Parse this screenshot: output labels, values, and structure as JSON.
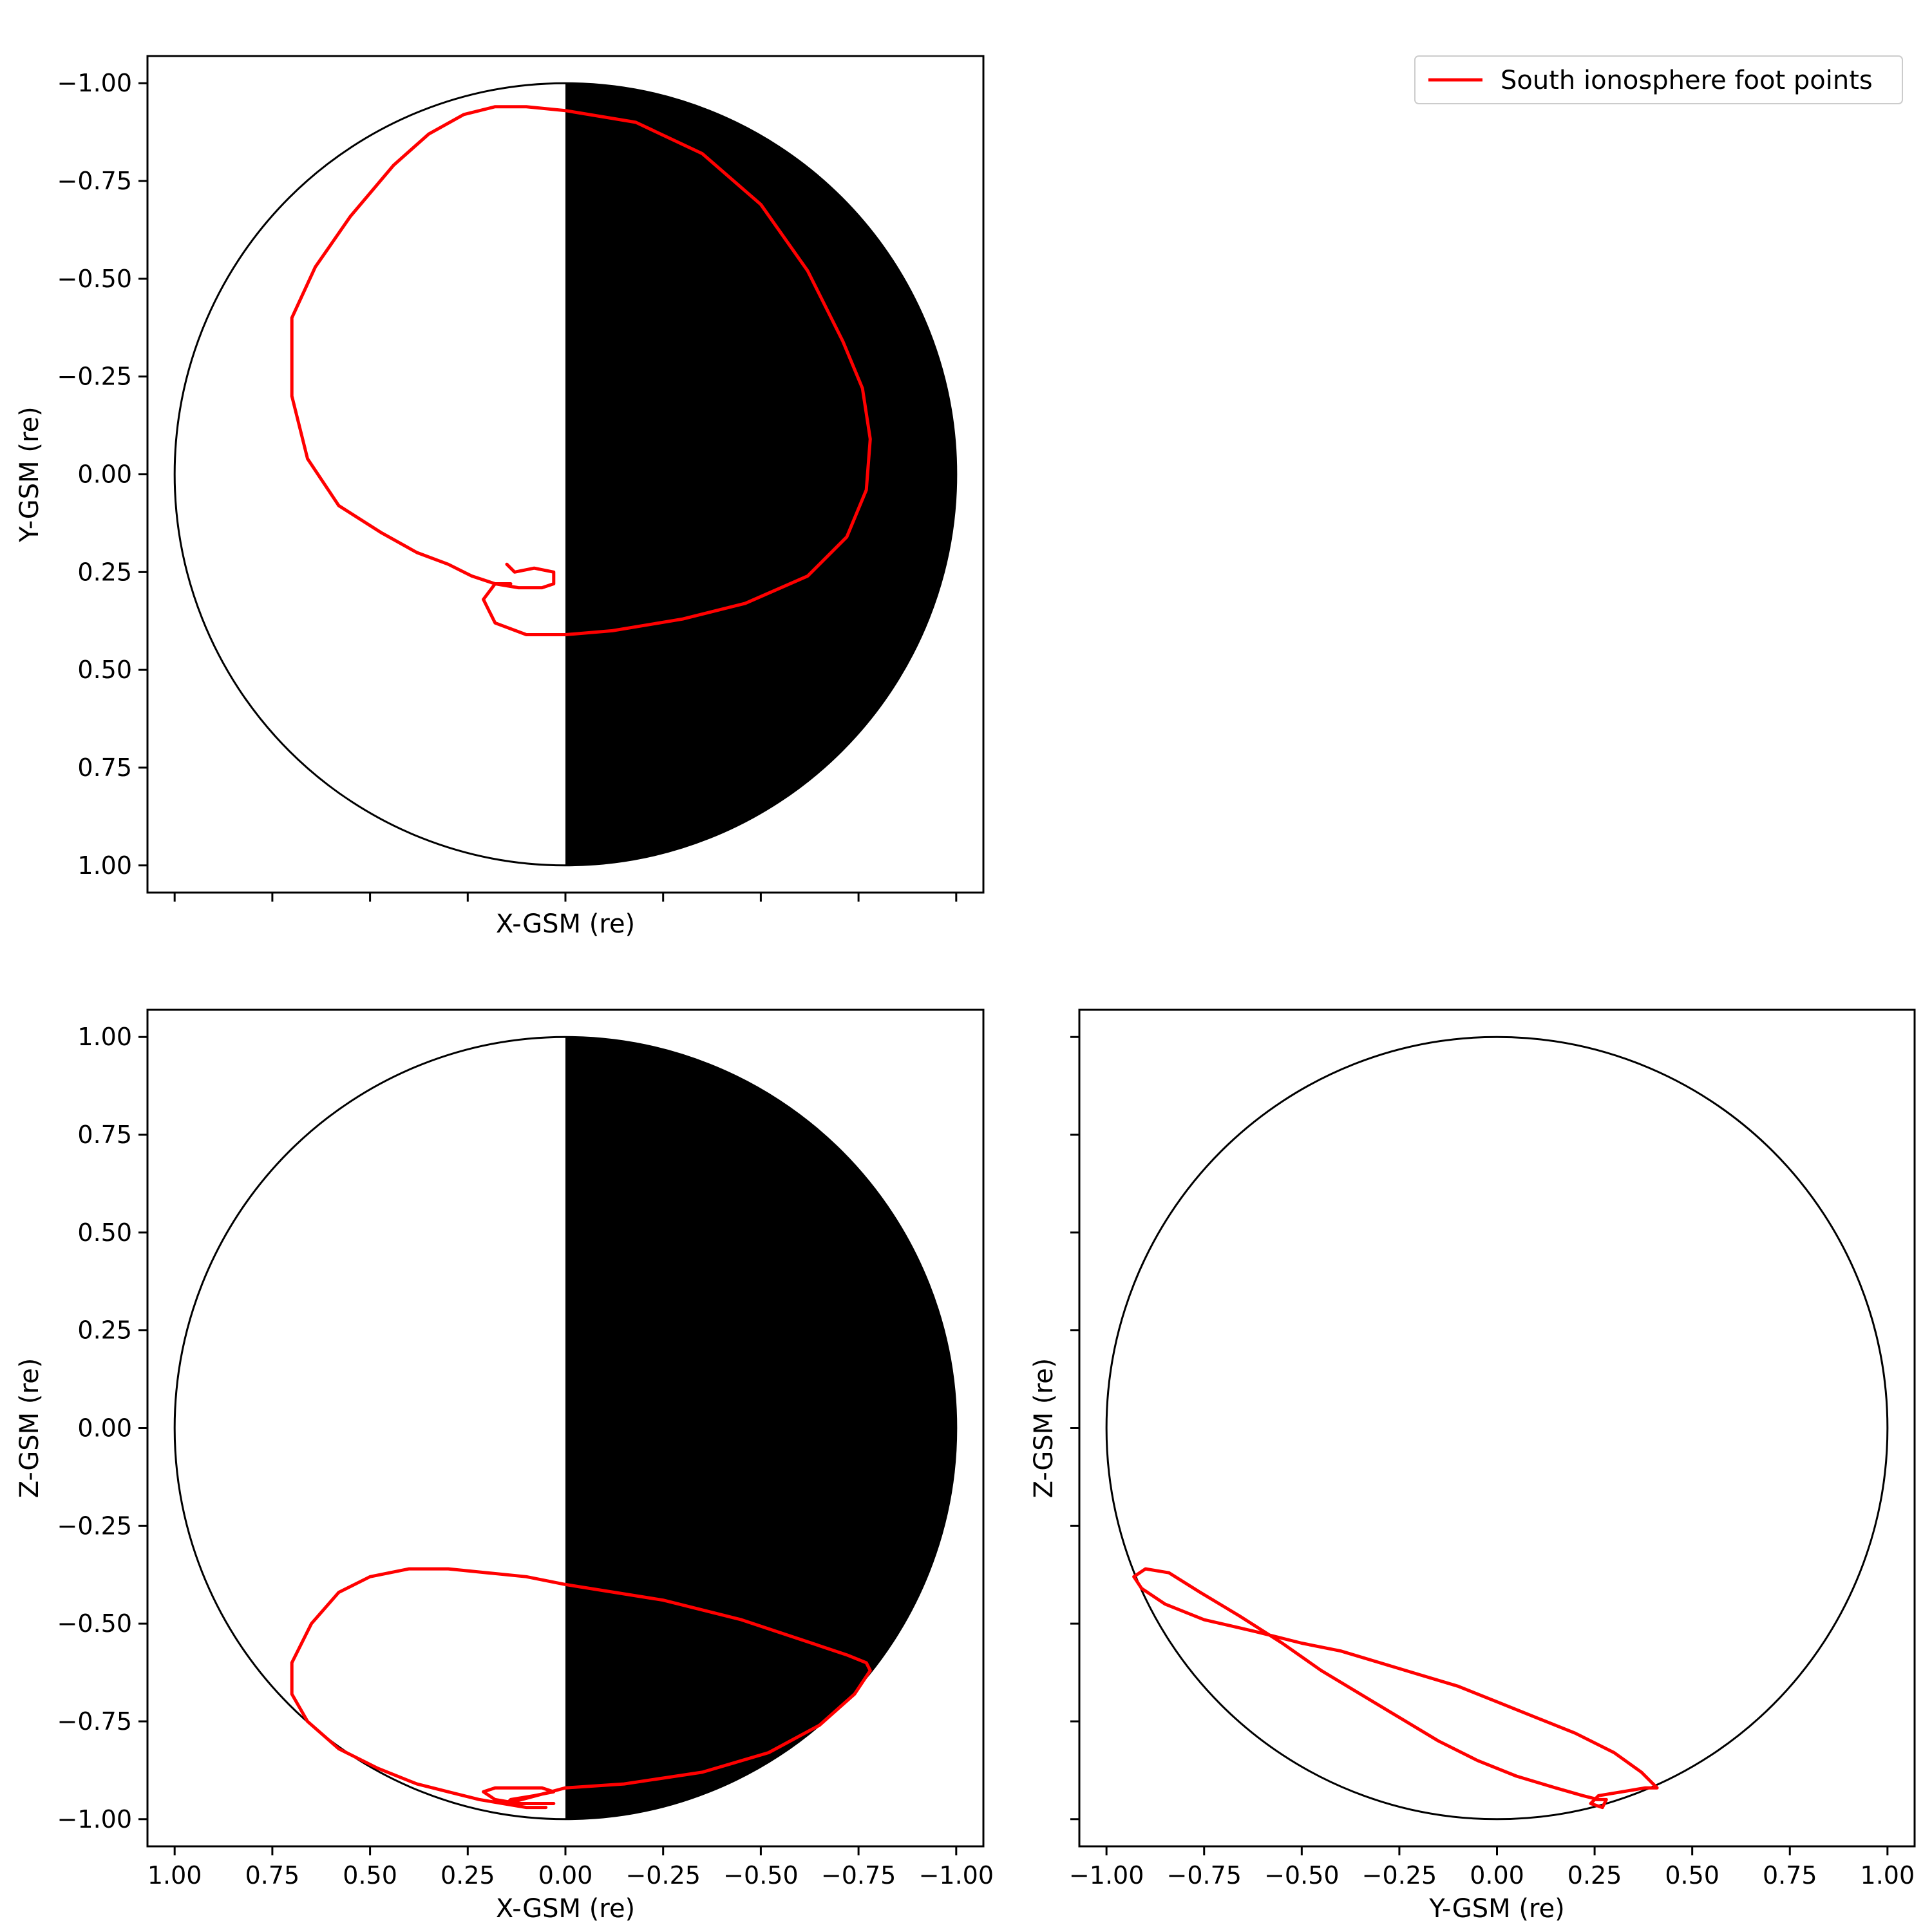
{
  "chart_data": [
    {
      "type": "line",
      "panel": "top-left",
      "xlabel": "X-GSM (re)",
      "ylabel": "Y-GSM (re)",
      "xlim": [
        1.0,
        -1.0
      ],
      "ylim": [
        1.0,
        -1.0
      ],
      "xtick_labels_shown": false,
      "yticks": [
        -1.0,
        -0.75,
        -0.5,
        -0.25,
        0.0,
        0.25,
        0.5,
        0.75,
        1.0
      ],
      "ytick_labels": [
        "−1.00",
        "−0.75",
        "−0.50",
        "−0.25",
        "0.00",
        "0.25",
        "0.50",
        "0.75",
        "1.00"
      ],
      "earth": {
        "radius": 1.0,
        "night_side": "x<0 filled black"
      },
      "series": [
        {
          "color": "#ff0000",
          "x": [
            0.15,
            0.13,
            0.08,
            0.03,
            0.03,
            0.06,
            0.12,
            0.18,
            0.21,
            0.18,
            0.1,
            0.0,
            -0.12,
            -0.3,
            -0.46,
            -0.62,
            -0.72,
            -0.77,
            -0.78,
            -0.76,
            -0.71,
            -0.62,
            -0.5,
            -0.35,
            -0.18,
            0.0,
            0.1,
            0.18,
            0.26,
            0.35,
            0.44,
            0.55,
            0.64,
            0.7,
            0.7,
            0.66,
            0.58,
            0.47,
            0.38,
            0.3,
            0.24,
            0.18,
            0.14
          ],
          "y": [
            0.23,
            0.25,
            0.24,
            0.25,
            0.28,
            0.29,
            0.29,
            0.28,
            0.32,
            0.38,
            0.41,
            0.41,
            0.4,
            0.37,
            0.33,
            0.26,
            0.16,
            0.04,
            -0.09,
            -0.22,
            -0.34,
            -0.52,
            -0.69,
            -0.82,
            -0.9,
            -0.93,
            -0.94,
            -0.94,
            -0.92,
            -0.87,
            -0.79,
            -0.66,
            -0.53,
            -0.4,
            -0.2,
            -0.04,
            0.08,
            0.15,
            0.2,
            0.23,
            0.26,
            0.28,
            0.28
          ]
        }
      ]
    },
    {
      "type": "line",
      "panel": "bottom-left",
      "xlabel": "X-GSM (re)",
      "ylabel": "Z-GSM (re)",
      "xlim": [
        1.0,
        -1.0
      ],
      "ylim": [
        -1.0,
        1.0
      ],
      "xticks": [
        1.0,
        0.75,
        0.5,
        0.25,
        0.0,
        -0.25,
        -0.5,
        -0.75,
        -1.0
      ],
      "xtick_labels": [
        "1.00",
        "0.75",
        "0.50",
        "0.25",
        "0.00",
        "−0.25",
        "−0.50",
        "−0.75",
        "−1.00"
      ],
      "yticks": [
        1.0,
        0.75,
        0.5,
        0.25,
        0.0,
        -0.25,
        -0.5,
        -0.75,
        -1.0
      ],
      "ytick_labels": [
        "1.00",
        "0.75",
        "0.50",
        "0.25",
        "0.00",
        "−0.25",
        "−0.50",
        "−0.75",
        "−1.00"
      ],
      "earth": {
        "radius": 1.0,
        "night_side": "x<0 filled black"
      },
      "series": [
        {
          "color": "#ff0000",
          "x": [
            0.03,
            0.12,
            0.18,
            0.21,
            0.18,
            0.06,
            0.03,
            0.08,
            0.14,
            0.15,
            0.0,
            -0.15,
            -0.35,
            -0.52,
            -0.65,
            -0.74,
            -0.78,
            -0.77,
            -0.72,
            -0.6,
            -0.45,
            -0.25,
            0.0,
            0.1,
            0.2,
            0.3,
            0.4,
            0.5,
            0.58,
            0.65,
            0.7,
            0.7,
            0.66,
            0.58,
            0.48,
            0.38,
            0.3,
            0.22,
            0.16,
            0.1,
            0.05
          ],
          "y": [
            -0.96,
            -0.96,
            -0.95,
            -0.93,
            -0.92,
            -0.92,
            -0.93,
            -0.94,
            -0.95,
            -0.96,
            -0.92,
            -0.91,
            -0.88,
            -0.83,
            -0.76,
            -0.68,
            -0.62,
            -0.6,
            -0.58,
            -0.54,
            -0.49,
            -0.44,
            -0.4,
            -0.38,
            -0.37,
            -0.36,
            -0.36,
            -0.38,
            -0.42,
            -0.5,
            -0.6,
            -0.68,
            -0.75,
            -0.82,
            -0.87,
            -0.91,
            -0.93,
            -0.95,
            -0.96,
            -0.97,
            -0.97
          ]
        }
      ]
    },
    {
      "type": "line",
      "panel": "bottom-right",
      "xlabel": "Y-GSM (re)",
      "ylabel": "Z-GSM (re)",
      "xlim": [
        -1.0,
        1.0
      ],
      "ylim": [
        -1.0,
        1.0
      ],
      "xticks": [
        -1.0,
        -0.75,
        -0.5,
        -0.25,
        0.0,
        0.25,
        0.5,
        0.75,
        1.0
      ],
      "xtick_labels": [
        "−1.00",
        "−0.75",
        "−0.50",
        "−0.25",
        "0.00",
        "0.25",
        "0.50",
        "0.75",
        "1.00"
      ],
      "ytick_labels_shown": false,
      "earth": {
        "radius": 1.0,
        "night_side": "none"
      },
      "series": [
        {
          "color": "#ff0000",
          "x": [
            0.25,
            0.28,
            0.27,
            0.24,
            0.26,
            0.32,
            0.38,
            0.41,
            0.37,
            0.3,
            0.2,
            0.1,
            0.0,
            -0.1,
            -0.2,
            -0.3,
            -0.4,
            -0.5,
            -0.62,
            -0.75,
            -0.85,
            -0.91,
            -0.93,
            -0.9,
            -0.84,
            -0.76,
            -0.66,
            -0.55,
            -0.45,
            -0.35,
            -0.25,
            -0.15,
            -0.05,
            0.05,
            0.15,
            0.22,
            0.26
          ],
          "y": [
            -0.95,
            -0.95,
            -0.97,
            -0.96,
            -0.94,
            -0.93,
            -0.92,
            -0.92,
            -0.88,
            -0.83,
            -0.78,
            -0.74,
            -0.7,
            -0.66,
            -0.63,
            -0.6,
            -0.57,
            -0.55,
            -0.52,
            -0.49,
            -0.45,
            -0.41,
            -0.38,
            -0.36,
            -0.37,
            -0.42,
            -0.48,
            -0.55,
            -0.62,
            -0.68,
            -0.74,
            -0.8,
            -0.85,
            -0.89,
            -0.92,
            -0.94,
            -0.95
          ]
        }
      ]
    }
  ],
  "legend": {
    "label": "South ionosphere foot points",
    "color": "#ff0000",
    "position": "top-right"
  }
}
